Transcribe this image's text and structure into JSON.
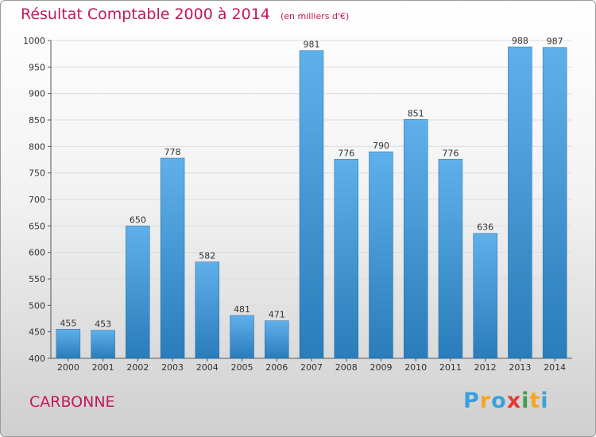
{
  "title": "Résultat Comptable 2000 à 2014",
  "subtitle": "(en milliers d'€)",
  "commune": "CARBONNE",
  "logo": {
    "letters": [
      "P",
      "r",
      "o",
      "x",
      "i",
      "t",
      "i"
    ],
    "colors": [
      "#3aa0dc",
      "#f5a623",
      "#3aa0dc",
      "#e53935",
      "#43a047",
      "#f5a623",
      "#3aa0dc"
    ]
  },
  "colors": {
    "title": "#c2185b",
    "bar_top": "#5fb0ea",
    "bar_bottom": "#2a7cba"
  },
  "chart_data": {
    "type": "bar",
    "title": "Résultat Comptable 2000 à 2014",
    "subtitle": "(en milliers d'€)",
    "categories": [
      "2000",
      "2001",
      "2002",
      "2003",
      "2004",
      "2005",
      "2006",
      "2007",
      "2008",
      "2009",
      "2010",
      "2011",
      "2012",
      "2013",
      "2014"
    ],
    "values": [
      455,
      453,
      650,
      778,
      582,
      481,
      471,
      981,
      776,
      790,
      851,
      776,
      636,
      988,
      987
    ],
    "ylim": [
      400,
      1000
    ],
    "yticks": [
      400,
      450,
      500,
      550,
      600,
      650,
      700,
      750,
      800,
      850,
      900,
      950,
      1000
    ],
    "grid": true
  }
}
